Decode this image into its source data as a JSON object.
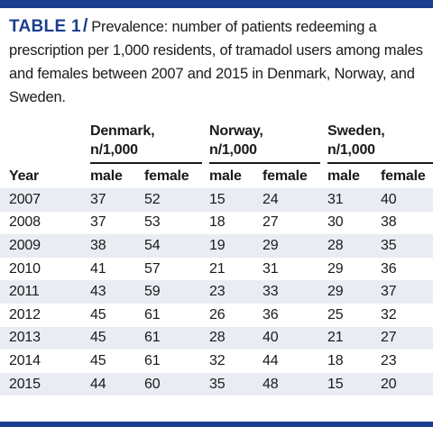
{
  "table_label": "TABLE 1",
  "caption": "Prevalence: number of patients redeeming a prescription per 1,000 residents, of tramadol users among males and females between 2007 and 2015 in Denmark, Norway, and Sweden.",
  "groups": [
    {
      "line1": "Denmark,",
      "line2": "n/1,000"
    },
    {
      "line1": "Norway,",
      "line2": "n/1,000"
    },
    {
      "line1": "Sweden,",
      "line2": "n/1,000"
    }
  ],
  "columns": {
    "year": "Year",
    "male": "male",
    "female": "female"
  },
  "rows": [
    [
      "2007",
      "37",
      "52",
      "15",
      "24",
      "31",
      "40"
    ],
    [
      "2008",
      "37",
      "53",
      "18",
      "27",
      "30",
      "38"
    ],
    [
      "2009",
      "38",
      "54",
      "19",
      "29",
      "28",
      "35"
    ],
    [
      "2010",
      "41",
      "57",
      "21",
      "31",
      "29",
      "36"
    ],
    [
      "2011",
      "43",
      "59",
      "23",
      "33",
      "29",
      "37"
    ],
    [
      "2012",
      "45",
      "61",
      "26",
      "36",
      "25",
      "32"
    ],
    [
      "2013",
      "45",
      "61",
      "28",
      "40",
      "21",
      "27"
    ],
    [
      "2014",
      "45",
      "61",
      "32",
      "44",
      "18",
      "23"
    ],
    [
      "2015",
      "44",
      "60",
      "35",
      "48",
      "15",
      "20"
    ]
  ],
  "colors": {
    "accent": "#1b3f8e",
    "stripe": "#e9ecf3"
  }
}
